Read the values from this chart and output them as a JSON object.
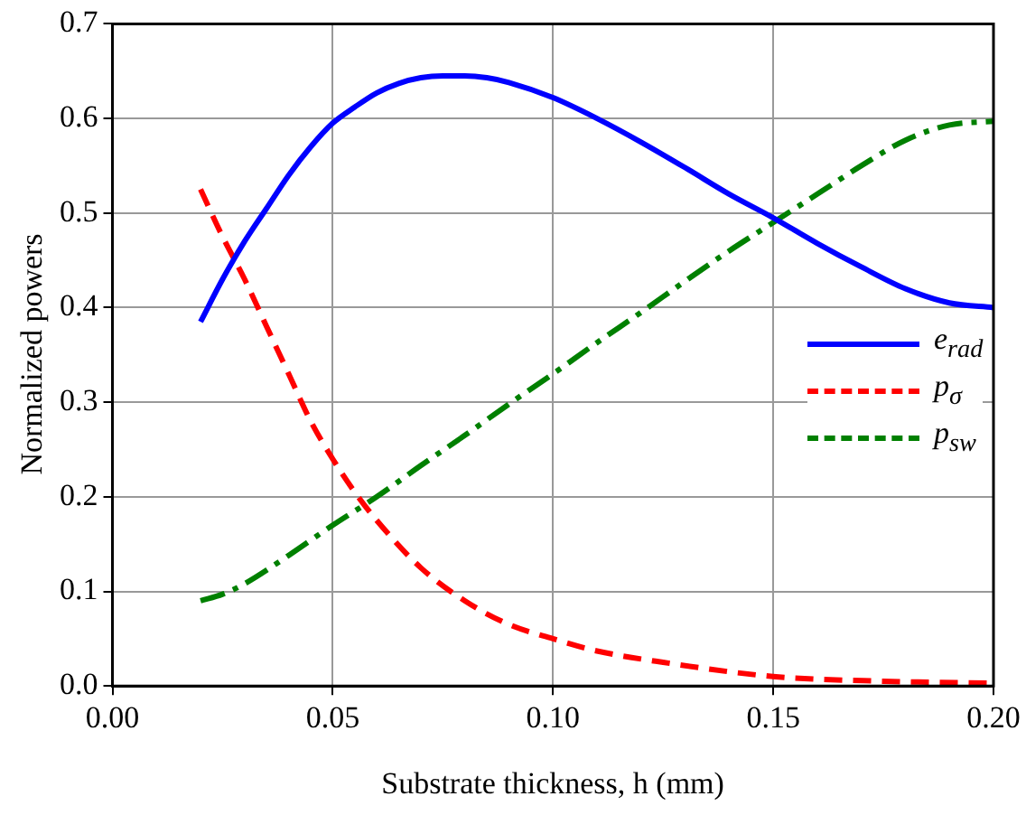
{
  "chart_data": {
    "type": "line",
    "xlabel": "Substrate thickness, h (mm)",
    "ylabel": "Normalized powers",
    "xlim": [
      0,
      0.2
    ],
    "xticks": [
      {
        "value": 0,
        "label": "0.00"
      },
      {
        "value": 0.05,
        "label": "0.05"
      },
      {
        "value": 0.1,
        "label": "0.10"
      },
      {
        "value": 0.15,
        "label": "0.15"
      },
      {
        "value": 0.2,
        "label": "0.20"
      }
    ],
    "ylim": [
      0,
      0.7
    ],
    "yticks": [
      {
        "value": 0,
        "label": "0.0"
      },
      0.1,
      0.2,
      0.3,
      0.4,
      0.5,
      0.6,
      0.7
    ],
    "grid": true,
    "legend": "right",
    "marker": "none",
    "series": [
      {
        "name": "e$_{rad}$",
        "color": "#0000ff",
        "line_style": "solid",
        "x": [
          0.02,
          0.025,
          0.03,
          0.035,
          0.04,
          0.045,
          0.05,
          0.055,
          0.06,
          0.065,
          0.07,
          0.075,
          0.08,
          0.085,
          0.09,
          0.1,
          0.11,
          0.12,
          0.13,
          0.14,
          0.15,
          0.16,
          0.17,
          0.18,
          0.19,
          0.2
        ],
        "values": [
          0.385,
          0.43,
          0.47,
          0.505,
          0.54,
          0.57,
          0.595,
          0.612,
          0.627,
          0.637,
          0.643,
          0.645,
          0.645,
          0.643,
          0.638,
          0.622,
          0.6,
          0.575,
          0.548,
          0.52,
          0.495,
          0.468,
          0.443,
          0.42,
          0.405,
          0.4
        ]
      },
      {
        "name": "p$_{σ}$",
        "color": "#ff0000",
        "line_style": "dashed",
        "x": [
          0.02,
          0.025,
          0.03,
          0.035,
          0.04,
          0.045,
          0.05,
          0.055,
          0.06,
          0.07,
          0.08,
          0.09,
          0.1,
          0.11,
          0.125,
          0.15,
          0.175,
          0.2
        ],
        "values": [
          0.525,
          0.475,
          0.43,
          0.38,
          0.33,
          0.28,
          0.24,
          0.205,
          0.175,
          0.125,
          0.09,
          0.065,
          0.05,
          0.037,
          0.025,
          0.01,
          0.005,
          0.003
        ]
      },
      {
        "name": "p$_{sw}$",
        "color": "#008000",
        "line_style": "dashdot",
        "x": [
          0.02,
          0.025,
          0.03,
          0.04,
          0.05,
          0.06,
          0.07,
          0.08,
          0.09,
          0.1,
          0.11,
          0.12,
          0.13,
          0.14,
          0.15,
          0.16,
          0.17,
          0.18,
          0.19,
          0.2
        ],
        "values": [
          0.09,
          0.097,
          0.108,
          0.138,
          0.17,
          0.2,
          0.233,
          0.265,
          0.298,
          0.33,
          0.363,
          0.395,
          0.428,
          0.46,
          0.49,
          0.52,
          0.55,
          0.577,
          0.593,
          0.597
        ]
      }
    ]
  }
}
